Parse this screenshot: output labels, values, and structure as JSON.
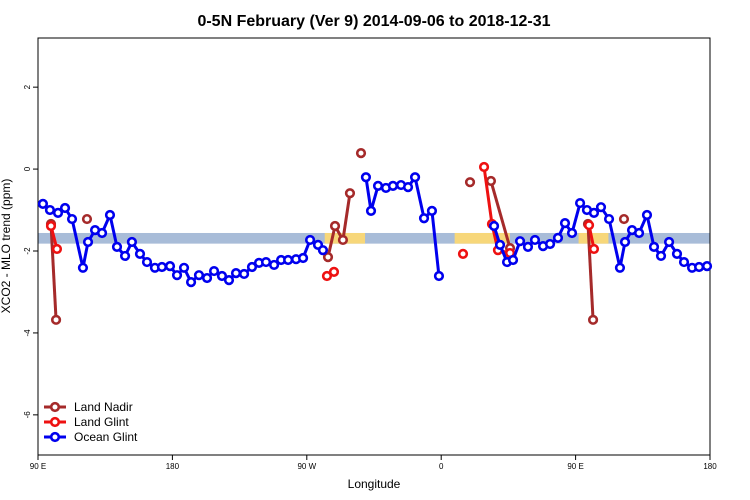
{
  "chart_data": {
    "type": "line",
    "title": "0-5N February (Ver 9)   2014-09-06 to 2018-12-31",
    "xlabel": "Longitude",
    "ylabel": "XCO2 - MLO trend (ppm)",
    "xlim": [
      90,
      540
    ],
    "ylim": [
      -6.98,
      3.2
    ],
    "xticks": [
      {
        "value": 90,
        "label": "90 E"
      },
      180,
      {
        "value": 270,
        "label": "90 W"
      },
      {
        "value": 360,
        "label": "0"
      },
      {
        "value": 450,
        "label": "90 E"
      },
      {
        "value": 540,
        "label": "180"
      }
    ],
    "yticks": [
      -6,
      -4,
      -2,
      0,
      2
    ],
    "band": {
      "values": [
        -1.82,
        -1.56
      ],
      "color": "#a8bcd8",
      "highlight_color": "#f7d77a",
      "highlight_ranges": [
        [
          282,
          309
        ],
        [
          369,
          406
        ],
        [
          452,
          472
        ]
      ]
    },
    "legend": "bottom-left",
    "series": [
      {
        "name": "Land Nadir",
        "color": "#a52a2a",
        "x": [
          98.7,
          102.1,
          110,
          122.8,
          200,
          284.2,
          288.9,
          294.2,
          298.9,
          303,
          306.3,
          340,
          379.3,
          385,
          393.3,
          406.1,
          430,
          458.3,
          461.7,
          470,
          482.4
        ],
        "values": [
          -1.34,
          -3.68,
          null,
          -1.22,
          null,
          -2.15,
          -1.39,
          -1.73,
          -0.59,
          null,
          0.39,
          null,
          -0.32,
          null,
          -0.29,
          -1.93,
          null,
          -1.34,
          -3.68,
          null,
          -1.22
        ]
      },
      {
        "name": "Land Glint",
        "color": "#ee1111",
        "x": [
          98.7,
          102.7,
          200,
          283.5,
          288.2,
          330,
          374.6,
          380,
          388.7,
          394.0,
          398.0,
          406.1,
          430,
          459.0,
          462.3
        ],
        "values": [
          -1.39,
          -1.95,
          null,
          -2.61,
          -2.51,
          null,
          -2.07,
          null,
          0.05,
          -1.34,
          -1.98,
          -2.05,
          null,
          -1.37,
          -1.95
        ]
      },
      {
        "name": "Ocean Glint",
        "color": "#0000ee",
        "x": [
          93.3,
          98.0,
          103.4,
          108.1,
          112.8,
          120.1,
          123.5,
          128.2,
          132.9,
          138.2,
          142.9,
          148.3,
          152.9,
          158.3,
          163.0,
          168.3,
          173.0,
          178.4,
          183.1,
          187.8,
          192.5,
          197.8,
          203.2,
          207.9,
          213.2,
          217.9,
          222.6,
          228.0,
          233.3,
          238.0,
          242.7,
          248.1,
          252.8,
          257.5,
          262.8,
          267.5,
          272.2,
          277.5,
          280.8,
          295,
          309.6,
          313.0,
          317.7,
          323.0,
          327.7,
          333.1,
          337.8,
          342.5,
          348.5,
          353.8,
          358.5,
          380,
          395.4,
          399.4,
          404.1,
          408.1,
          412.8,
          418.1,
          422.8,
          428.2,
          432.9,
          438.2,
          442.9,
          447.6,
          453.0,
          457.6,
          462.3,
          467.0,
          472.4,
          479.7,
          483.1,
          487.8,
          492.5,
          497.8,
          502.5,
          507.2,
          512.6,
          517.9,
          522.6,
          528.0,
          532.7,
          538.0
        ],
        "values": [
          -0.85,
          -1.0,
          -1.07,
          -0.95,
          -1.22,
          -2.41,
          -1.78,
          -1.49,
          -1.56,
          -1.12,
          -1.9,
          -2.12,
          -1.78,
          -2.07,
          -2.27,
          -2.41,
          -2.39,
          -2.37,
          -2.59,
          -2.41,
          -2.76,
          -2.59,
          -2.66,
          -2.49,
          -2.61,
          -2.71,
          -2.54,
          -2.56,
          -2.39,
          -2.29,
          -2.27,
          -2.34,
          -2.22,
          -2.22,
          -2.2,
          -2.17,
          -1.73,
          -1.85,
          -1.98,
          null,
          -0.2,
          -1.02,
          -0.41,
          -0.46,
          -0.41,
          -0.39,
          -0.44,
          -0.2,
          -1.2,
          -1.02,
          -2.61,
          null,
          -1.39,
          -1.85,
          -2.27,
          -2.22,
          -1.76,
          -1.9,
          -1.73,
          -1.88,
          -1.83,
          -1.68,
          -1.32,
          -1.56,
          -0.83,
          -1.0,
          -1.07,
          -0.93,
          -1.22,
          -2.41,
          -1.78,
          -1.49,
          -1.56,
          -1.12,
          -1.9,
          -2.12,
          -1.78,
          -2.07,
          -2.27,
          -2.41,
          -2.39,
          -2.37
        ]
      }
    ]
  }
}
